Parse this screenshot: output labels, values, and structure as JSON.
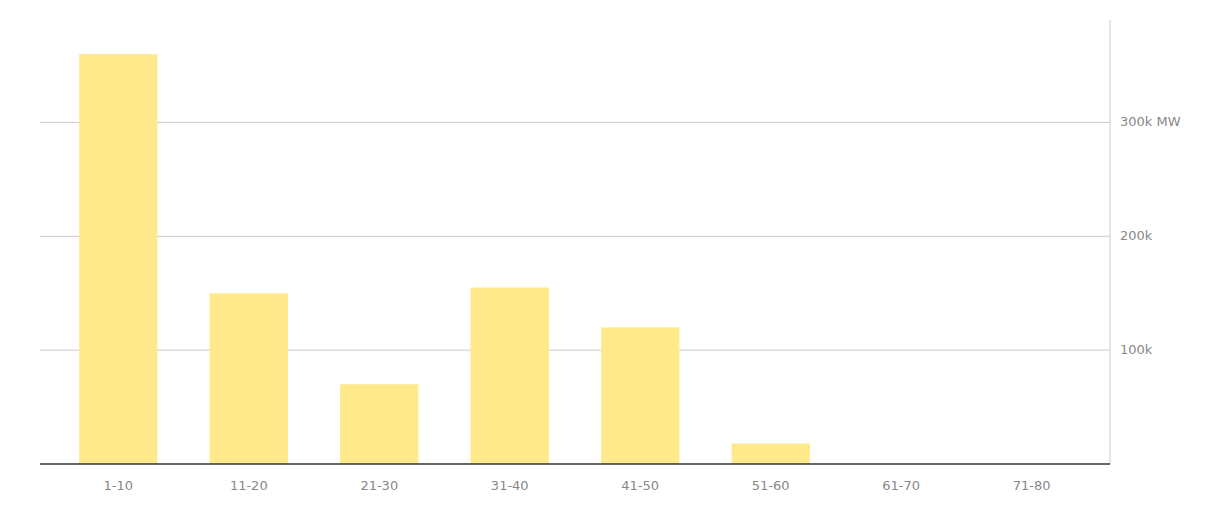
{
  "chart_data": {
    "type": "bar",
    "categories": [
      "1-10",
      "11-20",
      "21-30",
      "31-40",
      "41-50",
      "51-60",
      "61-70",
      "71-80"
    ],
    "values": [
      360000,
      150000,
      70000,
      155000,
      120000,
      18000,
      0,
      0
    ],
    "color": "#FFE98A",
    "ylim": [
      0,
      390000
    ],
    "yticks": [
      {
        "value": 100000,
        "label": "100k"
      },
      {
        "value": 200000,
        "label": "200k"
      },
      {
        "value": 300000,
        "label": "300k MW"
      }
    ],
    "grid": true
  }
}
